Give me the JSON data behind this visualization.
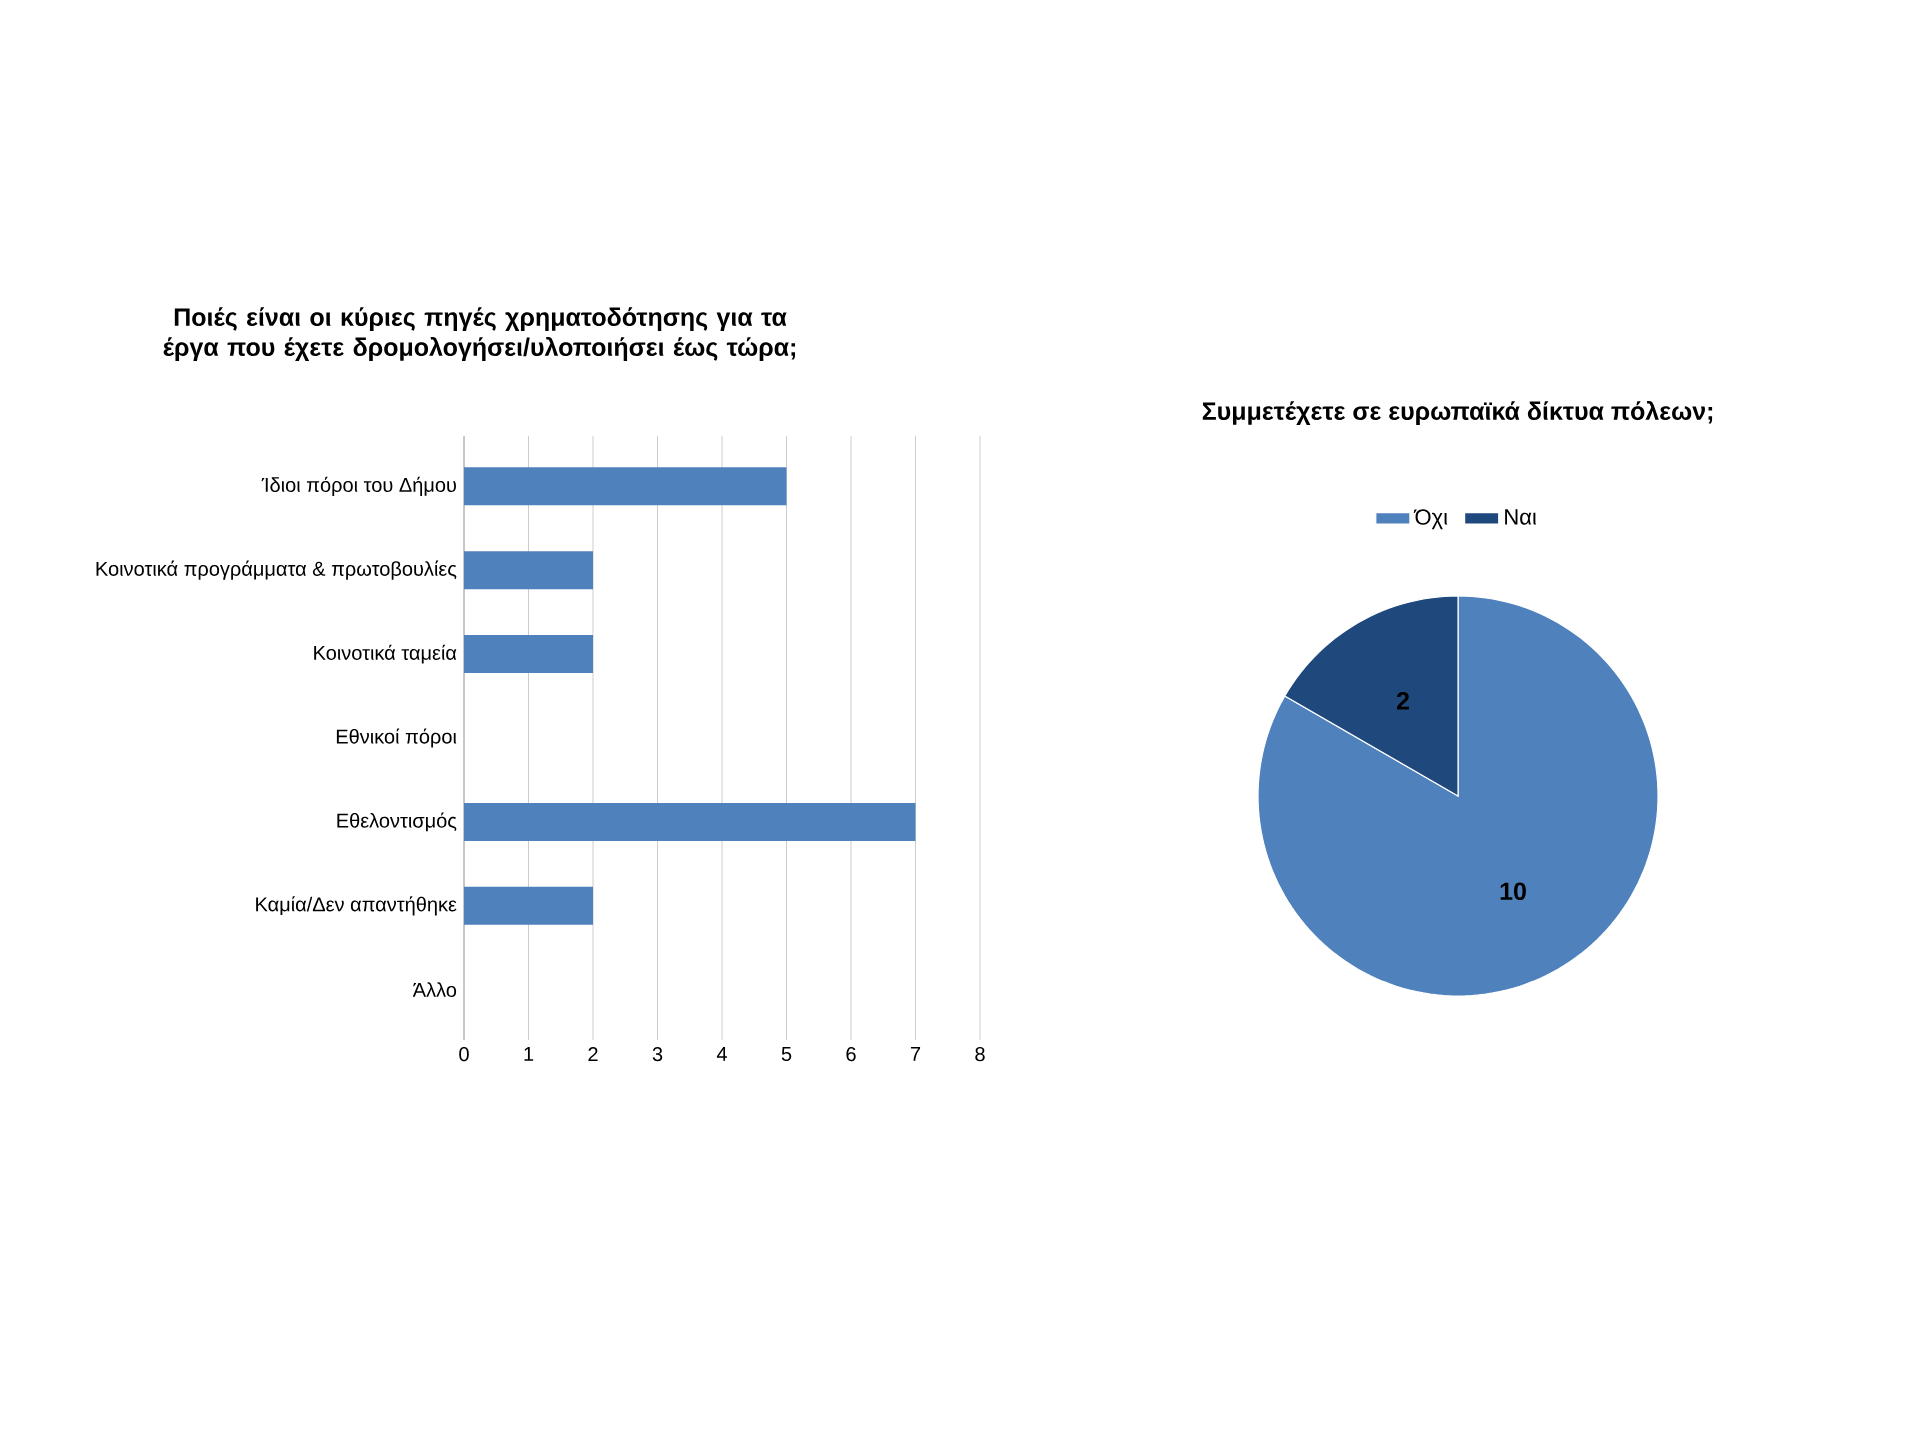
{
  "chart_data": [
    {
      "type": "bar",
      "orientation": "horizontal",
      "title": "Ποιές είναι οι κύριες πηγές χρηματοδότησης για τα έργα που έχετε δρομολογήσει/υλοποιήσει έως τώρα;",
      "categories": [
        "Ίδιοι πόροι του Δήμου",
        "Κοινοτικά προγράμματα & πρωτοβουλίες",
        "Κοινοτικά ταμεία",
        "Εθνικοί πόροι",
        "Εθελοντισμός",
        "Καμία/Δεν απαντήθηκε",
        "Άλλο"
      ],
      "values": [
        5,
        2,
        2,
        0,
        7,
        2,
        0
      ],
      "color": "#4f81bd",
      "xlim": [
        0,
        8
      ],
      "xticks": [
        0,
        1,
        2,
        3,
        4,
        5,
        6,
        7,
        8
      ],
      "grid": "x"
    },
    {
      "type": "pie",
      "title": "Συμμετέχετε σε ευρωπαϊκά δίκτυα πόλεων;",
      "categories": [
        "Όχι",
        "Ναι"
      ],
      "values": [
        10,
        2
      ],
      "colors": [
        "#4f81bd",
        "#1f497d"
      ],
      "data_labels": true,
      "legend": "top"
    }
  ]
}
